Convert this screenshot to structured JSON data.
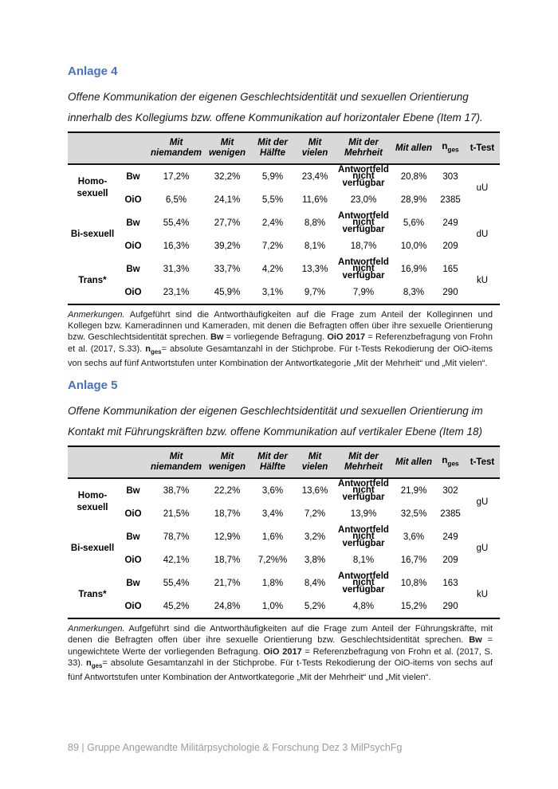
{
  "table_header": {
    "cols": [
      "Mit niemandem",
      "Mit wenigen",
      "Mit der Hälfte",
      "Mit vielen",
      "Mit der Mehrheit",
      "Mit allen"
    ],
    "nges": [
      {
        "text": "n",
        "bold": true
      },
      {
        "text": "ges",
        "bold": true,
        "sub": true
      }
    ],
    "ttest": "t-Test"
  },
  "anlage4": {
    "heading": "Anlage 4",
    "description": "Offene Kommunikation der eigenen Geschlechtsidentität und sexuellen Orientierung innerhalb des Kollegiums bzw. offene Kommunikation auf horizontaler Ebene  (Item 17).",
    "table": {
      "groups": [
        {
          "label": "Homo-sexuell",
          "t_test": "uU",
          "rows": [
            {
              "src": "Bw",
              "values": [
                "17,2%",
                "32,2%",
                "5,9%",
                "23,4%",
                "Antwortfeld nicht verfügbar",
                "20,8%",
                "303"
              ]
            },
            {
              "src": "OiO",
              "values": [
                "6,5%",
                "24,1%",
                "5,5%",
                "11,6%",
                "23,0%",
                "28,9%",
                "2385"
              ]
            }
          ]
        },
        {
          "label": "Bi-sexuell",
          "t_test": "dU",
          "rows": [
            {
              "src": "Bw",
              "values": [
                "55,4%",
                "27,7%",
                "2,4%",
                "8,8%",
                "Antwortfeld nicht verfügbar",
                "5,6%",
                "249"
              ]
            },
            {
              "src": "OiO",
              "values": [
                "16,3%",
                "39,2%",
                "7,2%",
                "8,1%",
                "18,7%",
                "10,0%",
                "209"
              ]
            }
          ]
        },
        {
          "label": "Trans*",
          "t_test": "kU",
          "rows": [
            {
              "src": "Bw",
              "values": [
                "31,3%",
                "33,7%",
                "4,2%",
                "13,3%",
                "Antwortfeld nicht verfügbar",
                "16,9%",
                "165"
              ]
            },
            {
              "src": "OiO",
              "values": [
                "23,1%",
                "45,9%",
                "3,1%",
                "9,7%",
                "7,9%",
                "8,3%",
                "290"
              ]
            }
          ]
        }
      ]
    },
    "notes": [
      {
        "text": "Anmerkungen.",
        "italic": true
      },
      {
        "text": " Aufgeführt sind die Antworthäufigkeiten auf die Frage zum Anteil der Kolleginnen und Kollegen bzw. Kameradinnen und Kameraden, mit denen die Befragten offen über ihre sexuelle Orientierung bzw. Geschlechtsidentität sprechen. "
      },
      {
        "text": "Bw",
        "bold": true
      },
      {
        "text": " = vorliegende Befragung. "
      },
      {
        "text": "OiO 2017",
        "bold": true
      },
      {
        "text": " = Referenzbefragung von Frohn et al. (2017, S.33). "
      },
      {
        "text": "n",
        "bold": true
      },
      {
        "text": "ges",
        "bold": true,
        "sub": true
      },
      {
        "text": "= absolute Gesamtanzahl in der Stichprobe. Für t-Tests Rekodierung der OiO-items von sechs auf fünf Antwortstufen unter Kombination der Antwortkategorie „Mit der Mehrheit“ und „Mit vielen“."
      }
    ]
  },
  "anlage5": {
    "heading": "Anlage 5",
    "description": "Offene Kommunikation der eigenen Geschlechtsidentität und sexuellen Orientierung im Kontakt mit Führungskräften bzw. offene Kommunikation auf vertikaler Ebene (Item 18)",
    "table": {
      "groups": [
        {
          "label": "Homo-sexuell",
          "t_test": "gU",
          "rows": [
            {
              "src": "Bw",
              "values": [
                "38,7%",
                "22,2%",
                "3,6%",
                "13,6%",
                "Antwortfeld nicht verfügbar",
                "21,9%",
                "302"
              ]
            },
            {
              "src": "OiO",
              "values": [
                "21,5%",
                "18,7%",
                "3,4%",
                "7,2%",
                "13,9%",
                "32,5%",
                "2385"
              ]
            }
          ]
        },
        {
          "label": "Bi-sexuell",
          "t_test": "gU",
          "rows": [
            {
              "src": "Bw",
              "values": [
                "78,7%",
                "12,9%",
                "1,6%",
                "3,2%",
                "Antwortfeld nicht verfügbar",
                "3,6%",
                "249"
              ]
            },
            {
              "src": "OiO",
              "values": [
                "42,1%",
                "18,7%",
                "7,2%%",
                "3,8%",
                "8,1%",
                "16,7%",
                "209"
              ]
            }
          ]
        },
        {
          "label": "Trans*",
          "t_test": "kU",
          "rows": [
            {
              "src": "Bw",
              "values": [
                "55,4%",
                "21,7%",
                "1,8%",
                "8,4%",
                "Antwortfeld nicht verfügbar",
                "10,8%",
                "163"
              ]
            },
            {
              "src": "OiO",
              "values": [
                "45,2%",
                "24,8%",
                "1,0%",
                "5,2%",
                "4,8%",
                "15,2%",
                "290"
              ]
            }
          ]
        }
      ]
    },
    "notes": [
      {
        "text": "Anmerkungen.",
        "italic": true
      },
      {
        "text": " Aufgeführt sind die Antworthäufigkeiten auf die Frage zum Anteil der Führungskräfte, mit denen die Befragten offen über ihre sexuelle Orientierung bzw. Geschlechtsidentität sprechen. "
      },
      {
        "text": "Bw",
        "bold": true
      },
      {
        "text": " = ungewichtete Werte der vorliegenden Befragung. "
      },
      {
        "text": "OiO 2017",
        "bold": true
      },
      {
        "text": " = Referenzbefragung von Frohn et al. (2017, S. 33). "
      },
      {
        "text": "n",
        "bold": true
      },
      {
        "text": "ges",
        "bold": true,
        "sub": true
      },
      {
        "text": "= absolute Gesamtanzahl in der Stichprobe. Für t-Tests Rekodierung der OiO-items von sechs auf fünf Antwortstufen unter Kombination der Antwortkategorie „Mit der Mehrheit“ und „Mit vielen“."
      }
    ]
  },
  "footer": {
    "text": "89 | Gruppe Angewandte Militärpsychologie & Forschung Dez 3 MilPsychFg"
  },
  "colors": {
    "heading_blue": "#4472C4",
    "table_header_gray": "#D9D9D9",
    "footer_gray": "#9A9A9A"
  }
}
